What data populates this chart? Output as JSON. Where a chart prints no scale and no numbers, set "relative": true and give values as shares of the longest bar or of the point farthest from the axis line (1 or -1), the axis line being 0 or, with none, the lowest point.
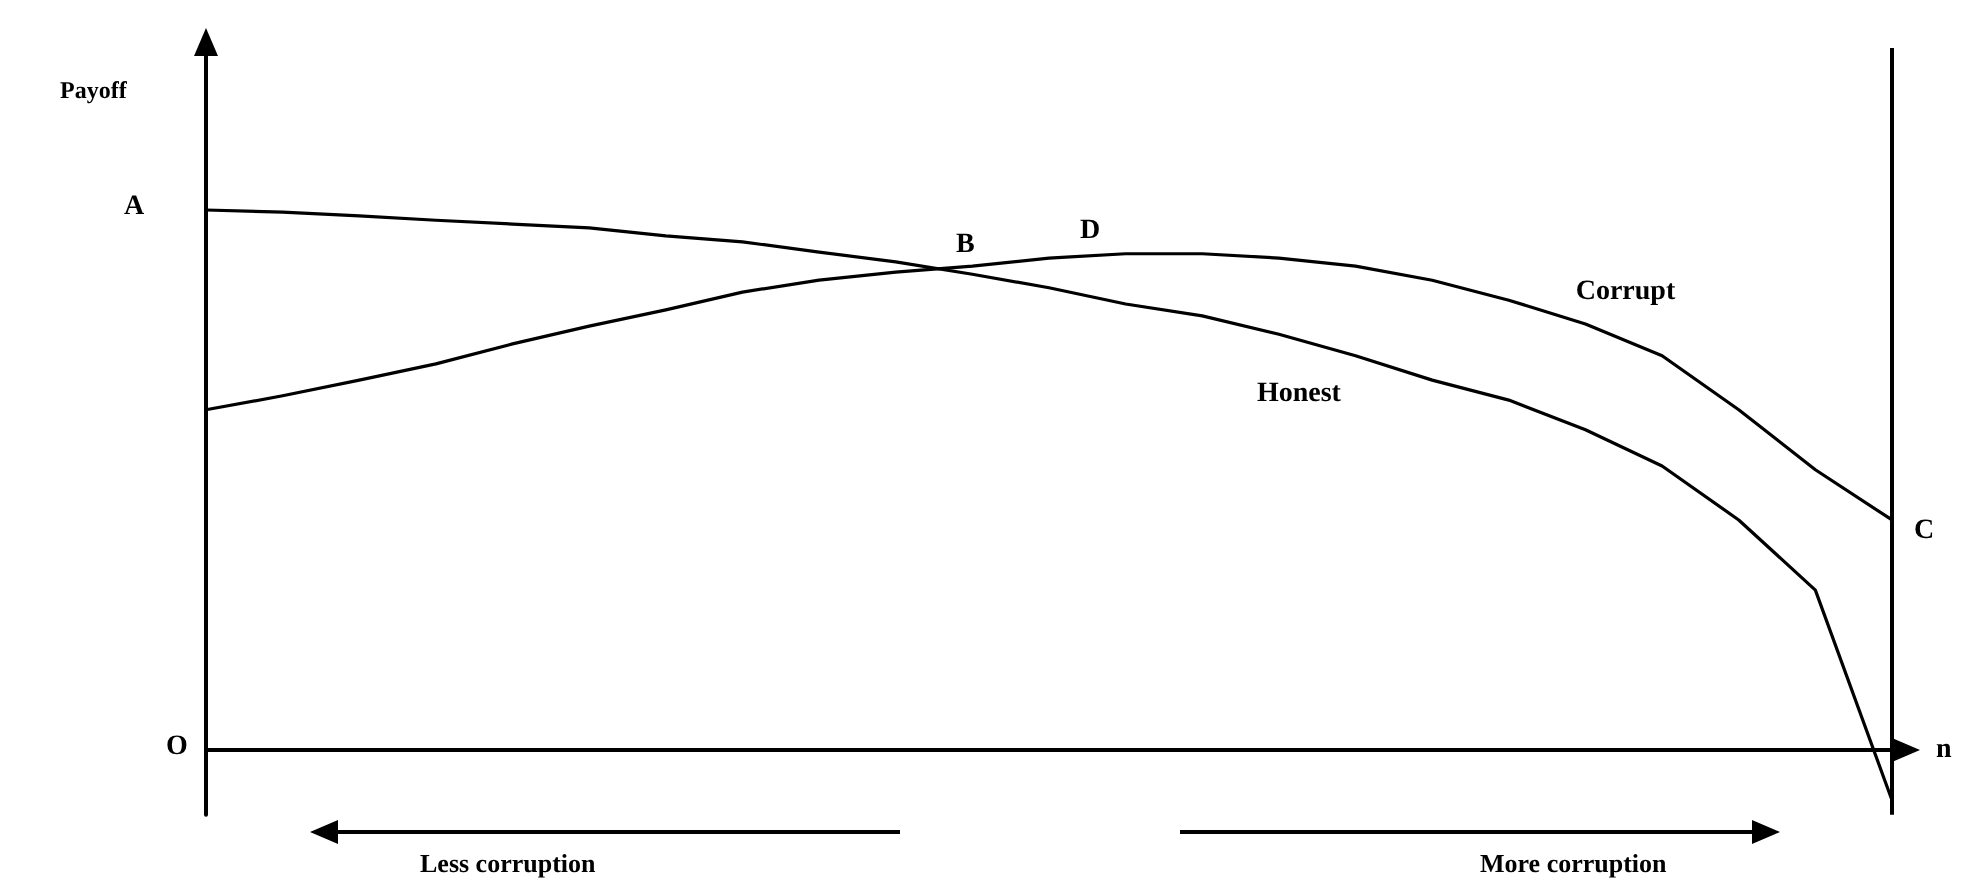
{
  "chart_data": {
    "type": "line",
    "relative": true,
    "xlabel": "n",
    "categories": [
      null,
      null,
      null,
      null,
      null,
      null,
      null,
      null,
      null,
      null,
      null,
      null,
      null,
      null,
      null,
      null,
      null,
      null,
      null,
      null,
      null,
      null,
      null
    ],
    "series": [
      {
        "name": "Honest",
        "color": "#000000",
        "values": [
          1,
          0.996,
          0.989,
          0.981,
          0.974,
          0.967,
          0.952,
          0.941,
          0.922,
          0.904,
          0.881,
          0.856,
          0.826,
          0.804,
          0.77,
          0.73,
          0.685,
          0.648,
          0.593,
          0.526,
          0.426,
          0.296,
          -0.093
        ]
      },
      {
        "name": "Corrupt",
        "color": "#000000",
        "values": [
          0.63,
          0.656,
          0.685,
          0.715,
          0.752,
          0.785,
          0.815,
          0.848,
          0.87,
          0.885,
          0.896,
          0.911,
          0.919,
          0.919,
          0.911,
          0.896,
          0.87,
          0.833,
          0.789,
          0.73,
          0.63,
          0.519,
          0.426
        ]
      }
    ],
    "annotations": [
      "A",
      "B",
      "D",
      "C",
      "O",
      "Less corruption",
      "More corruption",
      "Payoff"
    ],
    "marker": "none",
    "line_style": "solid",
    "grid": false
  }
}
